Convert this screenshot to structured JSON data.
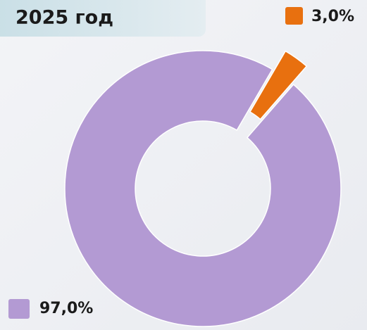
{
  "chart_data": {
    "type": "pie",
    "title": "2025 год",
    "donut": true,
    "values": [
      97,
      3
    ],
    "value_labels": [
      "97,0%",
      "3,0%"
    ],
    "colors": [
      "#b39ad3",
      "#e8700f"
    ]
  }
}
